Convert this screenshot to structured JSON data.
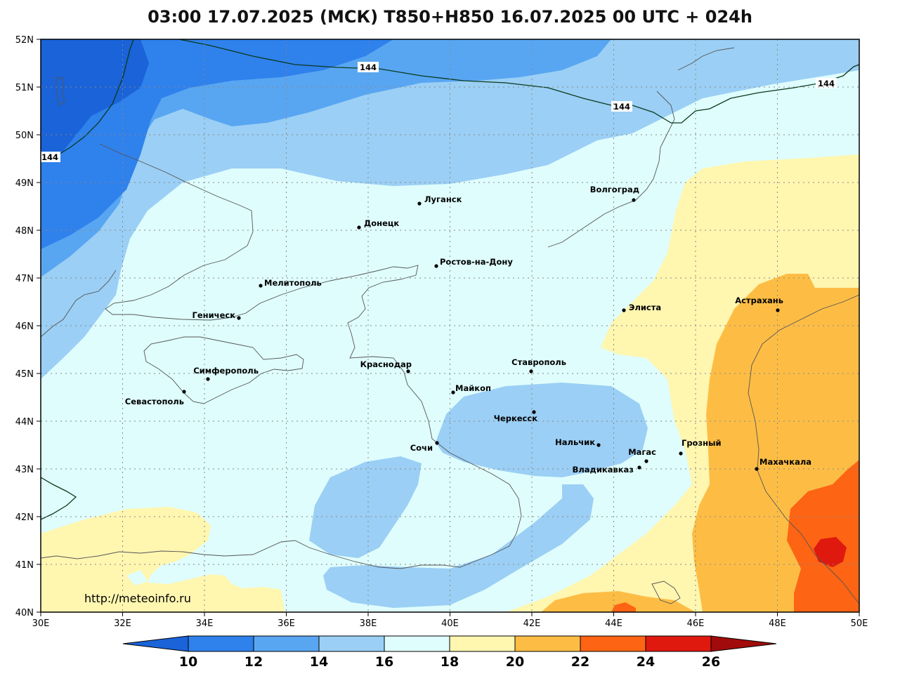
{
  "title": "03:00 17.07.2025 (МСК) T850+H850 16.07.2025 00 UTC + 024h",
  "watermark": "http://meteoinfo.ru",
  "axes": {
    "lat_labels": [
      "52N",
      "51N",
      "50N",
      "49N",
      "48N",
      "47N",
      "46N",
      "45N",
      "44N",
      "43N",
      "42N",
      "41N",
      "40N"
    ],
    "lon_labels": [
      "30E",
      "32E",
      "34E",
      "36E",
      "38E",
      "40E",
      "42E",
      "44E",
      "46E",
      "48E",
      "50E"
    ]
  },
  "contour_label": "144",
  "cities": [
    {
      "name": "Луганск"
    },
    {
      "name": "Донецк"
    },
    {
      "name": "Волгоград"
    },
    {
      "name": "Ростов-на-Дону"
    },
    {
      "name": "Мелитополь"
    },
    {
      "name": "Элиста"
    },
    {
      "name": "Астрахань"
    },
    {
      "name": "Геническ"
    },
    {
      "name": "Симферополь"
    },
    {
      "name": "Севастополь"
    },
    {
      "name": "Краснодар"
    },
    {
      "name": "Ставрополь"
    },
    {
      "name": "Майкоп"
    },
    {
      "name": "Черкесск"
    },
    {
      "name": "Нальчик"
    },
    {
      "name": "Сочи"
    },
    {
      "name": "Магас"
    },
    {
      "name": "Грозный"
    },
    {
      "name": "Владикавказ"
    },
    {
      "name": "Махачкала"
    }
  ],
  "colorbar": {
    "labels": [
      "10",
      "12",
      "14",
      "16",
      "18",
      "20",
      "22",
      "24",
      "26"
    ],
    "colors": [
      "#1a63d8",
      "#2f81ec",
      "#58a6f2",
      "#9bcff5",
      "#dffdfd",
      "#fff6b0",
      "#fdbd45",
      "#fd6413",
      "#e0190f",
      "#a10b0b"
    ]
  }
}
